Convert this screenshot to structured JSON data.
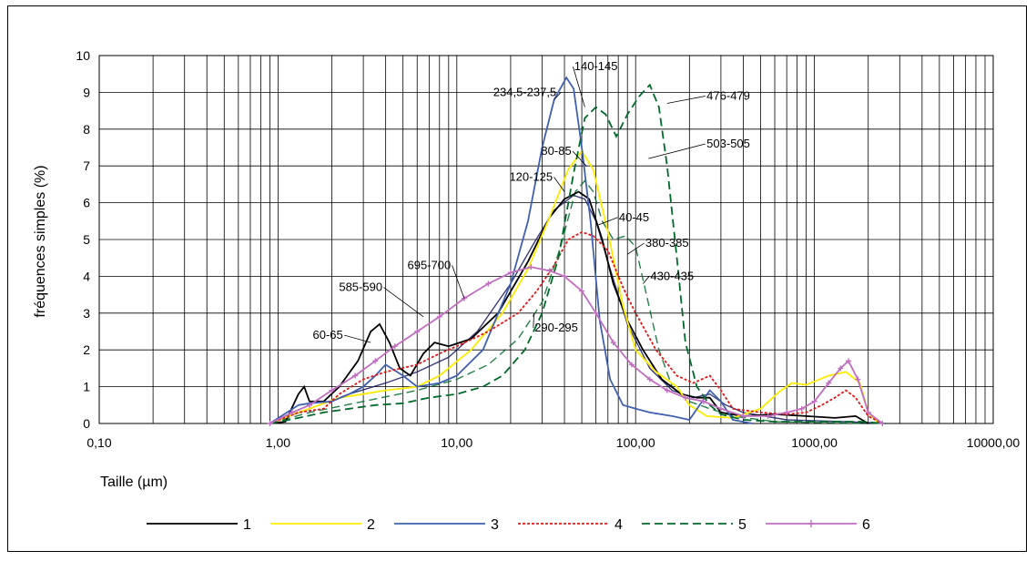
{
  "chart_data": {
    "type": "line",
    "xlabel": "Taille (µm)",
    "ylabel": "fréquences simples (%)",
    "x_scale": "log",
    "xlim": [
      0.1,
      10000
    ],
    "ylim": [
      0,
      10
    ],
    "grid": true,
    "legend_position": "bottom",
    "x_tick_labels": [
      {
        "value": 0.1,
        "label": "0,10"
      },
      {
        "value": 1,
        "label": "1,00"
      },
      {
        "value": 10,
        "label": "10,00"
      },
      {
        "value": 100,
        "label": "100,00"
      },
      {
        "value": 1000,
        "label": "1000,00"
      },
      {
        "value": 10000,
        "label": "10000,00"
      }
    ],
    "y_tick_labels": [
      "0",
      "1",
      "2",
      "3",
      "4",
      "5",
      "6",
      "7",
      "8",
      "9",
      "10"
    ],
    "series": [
      {
        "name": "1",
        "color": "#000000",
        "dash": "none",
        "marker": "none",
        "points": [
          [
            0.9,
            0
          ],
          [
            1.1,
            0.05
          ],
          [
            1.3,
            0.8
          ],
          [
            1.4,
            1.0
          ],
          [
            1.5,
            0.6
          ],
          [
            1.8,
            0.6
          ],
          [
            2.2,
            1.0
          ],
          [
            2.8,
            1.7
          ],
          [
            3.3,
            2.5
          ],
          [
            3.7,
            2.7
          ],
          [
            4.2,
            2.2
          ],
          [
            4.8,
            1.5
          ],
          [
            5.5,
            1.3
          ],
          [
            6.5,
            1.9
          ],
          [
            7.5,
            2.2
          ],
          [
            9,
            2.1
          ],
          [
            12,
            2.3
          ],
          [
            17,
            3.0
          ],
          [
            25,
            4.4
          ],
          [
            33,
            5.6
          ],
          [
            40,
            6.1
          ],
          [
            48,
            6.3
          ],
          [
            55,
            6.1
          ],
          [
            65,
            5.0
          ],
          [
            75,
            3.8
          ],
          [
            90,
            2.8
          ],
          [
            110,
            2.0
          ],
          [
            140,
            1.2
          ],
          [
            180,
            0.8
          ],
          [
            220,
            0.7
          ],
          [
            260,
            0.7
          ],
          [
            300,
            0.3
          ],
          [
            400,
            0.2
          ],
          [
            600,
            0.25
          ],
          [
            900,
            0.2
          ],
          [
            1300,
            0.15
          ],
          [
            1700,
            0.2
          ],
          [
            2000,
            0
          ]
        ]
      },
      {
        "name": "2",
        "color": "#ffeb00",
        "dash": "none",
        "marker": "none",
        "points": [
          [
            0.9,
            0
          ],
          [
            1.3,
            0.3
          ],
          [
            1.7,
            0.5
          ],
          [
            2.2,
            0.7
          ],
          [
            3,
            0.8
          ],
          [
            4,
            0.9
          ],
          [
            6,
            1.0
          ],
          [
            8,
            1.3
          ],
          [
            12,
            2.0
          ],
          [
            18,
            3.0
          ],
          [
            25,
            4.2
          ],
          [
            33,
            5.6
          ],
          [
            42,
            6.9
          ],
          [
            50,
            7.4
          ],
          [
            58,
            6.9
          ],
          [
            70,
            5.2
          ],
          [
            85,
            3.2
          ],
          [
            100,
            2.0
          ],
          [
            130,
            1.4
          ],
          [
            170,
            1.0
          ],
          [
            200,
            0.5
          ],
          [
            250,
            0.2
          ],
          [
            350,
            0.15
          ],
          [
            500,
            0.4
          ],
          [
            650,
            0.9
          ],
          [
            750,
            1.1
          ],
          [
            900,
            1.05
          ],
          [
            1200,
            1.3
          ],
          [
            1500,
            1.4
          ],
          [
            1800,
            1.1
          ],
          [
            2000,
            0.3
          ],
          [
            2300,
            0
          ]
        ]
      },
      {
        "name": "3",
        "color": "#4060b0",
        "dash": "none",
        "marker": "none",
        "points": [
          [
            0.9,
            0
          ],
          [
            1.3,
            0.5
          ],
          [
            1.5,
            0.55
          ],
          [
            2,
            0.6
          ],
          [
            2.5,
            0.8
          ],
          [
            3,
            1.0
          ],
          [
            3.5,
            1.3
          ],
          [
            4,
            1.6
          ],
          [
            5,
            1.3
          ],
          [
            6,
            1.0
          ],
          [
            8,
            1.1
          ],
          [
            10,
            1.3
          ],
          [
            14,
            2.0
          ],
          [
            20,
            3.8
          ],
          [
            25,
            5.5
          ],
          [
            30,
            7.5
          ],
          [
            35,
            8.8
          ],
          [
            41,
            9.4
          ],
          [
            45,
            9.1
          ],
          [
            50,
            7.5
          ],
          [
            56,
            5.5
          ],
          [
            63,
            2.8
          ],
          [
            72,
            1.2
          ],
          [
            85,
            0.5
          ],
          [
            100,
            0.4
          ],
          [
            120,
            0.3
          ],
          [
            160,
            0.2
          ],
          [
            200,
            0.1
          ],
          [
            260,
            0.9
          ],
          [
            300,
            0.6
          ],
          [
            350,
            0.1
          ],
          [
            450,
            0
          ]
        ]
      },
      {
        "name": "4",
        "color": "#e01818",
        "dash": "3,2",
        "marker": "none",
        "points": [
          [
            0.9,
            0
          ],
          [
            1.3,
            0.3
          ],
          [
            1.8,
            0.4
          ],
          [
            2.2,
            0.8
          ],
          [
            3,
            1.2
          ],
          [
            4,
            1.4
          ],
          [
            6,
            1.6
          ],
          [
            8,
            1.9
          ],
          [
            10,
            2.1
          ],
          [
            15,
            2.5
          ],
          [
            22,
            3.0
          ],
          [
            28,
            3.6
          ],
          [
            35,
            4.3
          ],
          [
            42,
            5.0
          ],
          [
            50,
            5.2
          ],
          [
            58,
            5.1
          ],
          [
            70,
            4.7
          ],
          [
            85,
            3.7
          ],
          [
            100,
            3.0
          ],
          [
            130,
            2.0
          ],
          [
            170,
            1.3
          ],
          [
            210,
            1.1
          ],
          [
            260,
            1.3
          ],
          [
            300,
            0.9
          ],
          [
            350,
            0.4
          ],
          [
            500,
            0.3
          ],
          [
            700,
            0.25
          ],
          [
            900,
            0.3
          ],
          [
            1100,
            0.5
          ],
          [
            1300,
            0.7
          ],
          [
            1500,
            0.9
          ],
          [
            1700,
            0.7
          ],
          [
            2000,
            0.2
          ],
          [
            2400,
            0
          ]
        ]
      },
      {
        "name": "5",
        "color": "#006a2a",
        "dash": "9,5",
        "marker": "none",
        "points": [
          [
            0.9,
            0
          ],
          [
            1.3,
            0.15
          ],
          [
            1.8,
            0.3
          ],
          [
            2.5,
            0.4
          ],
          [
            3.5,
            0.5
          ],
          [
            5,
            0.55
          ],
          [
            7,
            0.7
          ],
          [
            10,
            0.8
          ],
          [
            14,
            1.0
          ],
          [
            18,
            1.3
          ],
          [
            24,
            2.0
          ],
          [
            30,
            3.0
          ],
          [
            37,
            4.5
          ],
          [
            45,
            6.8
          ],
          [
            52,
            8.3
          ],
          [
            60,
            8.6
          ],
          [
            68,
            8.4
          ],
          [
            78,
            7.8
          ],
          [
            90,
            8.4
          ],
          [
            105,
            8.9
          ],
          [
            120,
            9.2
          ],
          [
            135,
            8.6
          ],
          [
            150,
            7.0
          ],
          [
            170,
            4.5
          ],
          [
            190,
            2.2
          ],
          [
            220,
            1.0
          ],
          [
            260,
            0.5
          ],
          [
            300,
            0.25
          ],
          [
            400,
            0.1
          ],
          [
            600,
            0.05
          ],
          [
            1000,
            0.05
          ],
          [
            1800,
            0.05
          ],
          [
            2500,
            0
          ]
        ]
      },
      {
        "name": "6",
        "color": "#c06ec0",
        "dash": "none",
        "marker": "plus",
        "points": [
          [
            0.9,
            0
          ],
          [
            1.2,
            0.3
          ],
          [
            1.5,
            0.5
          ],
          [
            2,
            0.9
          ],
          [
            2.7,
            1.3
          ],
          [
            3.5,
            1.7
          ],
          [
            4.5,
            2.1
          ],
          [
            6,
            2.5
          ],
          [
            8,
            2.9
          ],
          [
            11,
            3.4
          ],
          [
            15,
            3.8
          ],
          [
            20,
            4.1
          ],
          [
            26,
            4.25
          ],
          [
            33,
            4.15
          ],
          [
            40,
            4.0
          ],
          [
            50,
            3.6
          ],
          [
            60,
            3.0
          ],
          [
            75,
            2.2
          ],
          [
            95,
            1.6
          ],
          [
            120,
            1.2
          ],
          [
            150,
            0.9
          ],
          [
            190,
            0.7
          ],
          [
            240,
            0.6
          ],
          [
            300,
            0.4
          ],
          [
            400,
            0.2
          ],
          [
            550,
            0.2
          ],
          [
            700,
            0.3
          ],
          [
            850,
            0.4
          ],
          [
            1000,
            0.6
          ],
          [
            1200,
            1.1
          ],
          [
            1400,
            1.5
          ],
          [
            1550,
            1.7
          ],
          [
            1750,
            1.2
          ],
          [
            2000,
            0.3
          ],
          [
            2400,
            0
          ]
        ]
      }
    ],
    "extra_lines": [
      {
        "name": "unlabeled-dark",
        "color": "#1a1a60",
        "dash": "none",
        "points": [
          [
            0.9,
            0
          ],
          [
            1.5,
            0.4
          ],
          [
            2.5,
            0.8
          ],
          [
            4,
            1.1
          ],
          [
            6,
            1.4
          ],
          [
            9,
            1.8
          ],
          [
            13,
            2.5
          ],
          [
            20,
            3.8
          ],
          [
            27,
            4.9
          ],
          [
            35,
            5.8
          ],
          [
            45,
            6.2
          ],
          [
            52,
            6.1
          ],
          [
            60,
            5.5
          ],
          [
            72,
            4.2
          ],
          [
            90,
            2.7
          ],
          [
            120,
            1.5
          ],
          [
            160,
            0.9
          ],
          [
            210,
            0.7
          ],
          [
            260,
            0.8
          ],
          [
            320,
            0.5
          ],
          [
            400,
            0.3
          ],
          [
            700,
            0.1
          ],
          [
            1500,
            0.05
          ],
          [
            2500,
            0
          ]
        ]
      },
      {
        "name": "unlabeled-green",
        "color": "#006a2a",
        "dash": "9,5",
        "points": [
          [
            0.9,
            0
          ],
          [
            1.5,
            0.3
          ],
          [
            3,
            0.6
          ],
          [
            6,
            0.9
          ],
          [
            10,
            1.2
          ],
          [
            15,
            1.6
          ],
          [
            22,
            2.3
          ],
          [
            30,
            3.3
          ],
          [
            38,
            4.8
          ],
          [
            46,
            6.3
          ],
          [
            52,
            6.6
          ],
          [
            58,
            6.3
          ],
          [
            65,
            5.5
          ],
          [
            75,
            5.0
          ],
          [
            88,
            5.1
          ],
          [
            100,
            4.8
          ],
          [
            115,
            3.5
          ],
          [
            135,
            2.0
          ],
          [
            160,
            1.0
          ],
          [
            200,
            0.6
          ],
          [
            260,
            0.4
          ],
          [
            350,
            0.2
          ],
          [
            600,
            0.05
          ],
          [
            2000,
            0
          ]
        ]
      }
    ],
    "annotations": [
      {
        "label": "140-145",
        "x": 60,
        "y": 9.6,
        "ax": 52,
        "ay": 8.6
      },
      {
        "label": "234,5-237,5",
        "x": 24,
        "y": 8.9,
        "ax": 35,
        "ay": 8.8
      },
      {
        "label": "476-479",
        "x": 330,
        "y": 8.8,
        "ax": 150,
        "ay": 8.7
      },
      {
        "label": "503-505",
        "x": 330,
        "y": 7.5,
        "ax": 118,
        "ay": 7.2
      },
      {
        "label": "80-85",
        "x": 36,
        "y": 7.3,
        "ax": 53,
        "ay": 7.0
      },
      {
        "label": "120-125",
        "x": 26,
        "y": 6.6,
        "ax": 40,
        "ay": 6.3
      },
      {
        "label": "40-45",
        "x": 98,
        "y": 5.5,
        "ax": 62,
        "ay": 5.4
      },
      {
        "label": "380-385",
        "x": 150,
        "y": 4.8,
        "ax": 90,
        "ay": 4.6
      },
      {
        "label": "695-700",
        "x": 7,
        "y": 4.2,
        "ax": 11,
        "ay": 3.4
      },
      {
        "label": "430-435",
        "x": 160,
        "y": 3.9,
        "ax": 110,
        "ay": 3.8
      },
      {
        "label": "585-590",
        "x": 2.9,
        "y": 3.6,
        "ax": 6.5,
        "ay": 2.9
      },
      {
        "label": "290-295",
        "x": 36,
        "y": 2.5,
        "ax": 27,
        "ay": 3.0
      },
      {
        "label": "60-65",
        "x": 1.9,
        "y": 2.3,
        "ax": 3.3,
        "ay": 2.2
      }
    ]
  }
}
